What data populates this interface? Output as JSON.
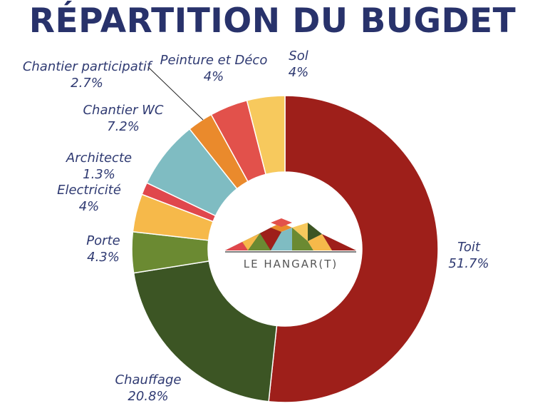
{
  "chart_data": {
    "type": "pie",
    "title": "RÉPARTITION DU BUGDET",
    "donut": true,
    "start": "top",
    "direction": "clockwise",
    "slices": [
      {
        "name": "Toit",
        "value": 51.7,
        "value_label": "51.7%",
        "color": "#9e1f1a"
      },
      {
        "name": "Chauffage",
        "value": 20.8,
        "value_label": "20.8%",
        "color": "#3c5524"
      },
      {
        "name": "Porte",
        "value": 4.3,
        "value_label": "4.3%",
        "color": "#6b8a32"
      },
      {
        "name": "Electricité",
        "value": 4,
        "value_label": "4%",
        "color": "#f6b94a"
      },
      {
        "name": "Architecte",
        "value": 1.3,
        "value_label": "1.3%",
        "color": "#e0474c"
      },
      {
        "name": "Chantier WC",
        "value": 7.2,
        "value_label": "7.2%",
        "color": "#7fbcc2"
      },
      {
        "name": "Chantier participatif",
        "value": 2.7,
        "value_label": "2.7%",
        "color": "#ea8a2c"
      },
      {
        "name": "Peinture et Déco",
        "value": 4,
        "value_label": "4%",
        "color": "#e2514b"
      },
      {
        "name": "Sol",
        "value": 4,
        "value_label": "4%",
        "color": "#f7c95d"
      }
    ]
  },
  "logo": {
    "text": "LE HANGAR(T)"
  }
}
